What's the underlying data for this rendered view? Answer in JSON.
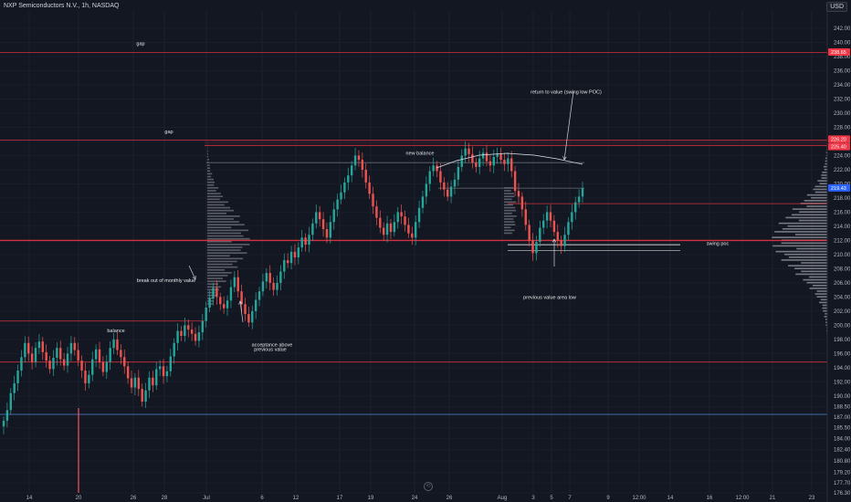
{
  "header": {
    "title": "NXP Semiconductors N.V., 1h, NASDAQ",
    "currency": "USD"
  },
  "colors": {
    "background": "#131722",
    "up": "#26a69a",
    "down": "#ef5350",
    "red_line": "#f23645",
    "blue_line": "#5b9cf6",
    "profile": "#b2b5be",
    "poc": "#ffffff"
  },
  "chart_data": {
    "type": "candlestick",
    "symbol": "NXPI",
    "interval": "1h",
    "y_axis": {
      "ticks": [
        "242.00",
        "240.00",
        "238.00",
        "236.00",
        "234.00",
        "232.00",
        "230.00",
        "228.00",
        "226.00",
        "224.00",
        "222.00",
        "220.00",
        "218.00",
        "216.00",
        "214.00",
        "212.00",
        "210.00",
        "208.00",
        "206.00",
        "204.00",
        "202.00",
        "200.00",
        "198.00",
        "196.00",
        "194.00",
        "192.00",
        "190.00",
        "188.50",
        "187.00",
        "185.50",
        "184.00",
        "182.40",
        "180.80",
        "179.20",
        "177.70",
        "176.30"
      ]
    },
    "x_axis": {
      "ticks": [
        "14",
        "20",
        "26",
        "28",
        "Jul",
        "6",
        "12",
        "17",
        "19",
        "24",
        "26",
        "Aug",
        "3",
        "5",
        "7",
        "9",
        "12:00",
        "14",
        "16",
        "12:00",
        "21",
        "23"
      ]
    },
    "price_tags": [
      {
        "label": "238.65",
        "color": "#f23645"
      },
      {
        "label": "226.20",
        "color": "#f23645"
      },
      {
        "label": "225.40",
        "color": "#f23645"
      },
      {
        "label": "219.43",
        "color": "#2962ff"
      }
    ],
    "levels": [
      {
        "price": 238.6,
        "color": "#f23645"
      },
      {
        "price": 226.2,
        "color": "#f23645"
      },
      {
        "price": 225.4,
        "color": "#f23645"
      },
      {
        "price": 212.0,
        "color": "#f23645"
      },
      {
        "price": 194.8,
        "color": "#f23645"
      },
      {
        "price": 200.6,
        "color": "#f23645"
      },
      {
        "price": 187.4,
        "color": "#5b9cf6"
      },
      {
        "price": 217.2,
        "color": "#f23645"
      },
      {
        "price": 223.0,
        "color": "#787b86"
      },
      {
        "price": 219.4,
        "color": "#787b86"
      }
    ],
    "annotations": [
      {
        "text": "gap",
        "price": 239.9
      },
      {
        "text": "gap",
        "price": 227.4
      },
      {
        "text": "new balance",
        "price": 224.4
      },
      {
        "text": "return to value (swing low POC)",
        "price": 233.0
      },
      {
        "text": "break out of monthly value",
        "price": 206.4
      },
      {
        "text": "balance",
        "price": 199.3
      },
      {
        "text": "acceptance above",
        "price": 197.3
      },
      {
        "text": "previous value",
        "price": 196.6
      },
      {
        "text": "swing poc",
        "price": 211.6
      },
      {
        "text": "previous value area low",
        "price": 204.0
      }
    ],
    "closes": [
      186.5,
      188.0,
      190.4,
      191.8,
      193.6,
      195.5,
      197.5,
      196.0,
      194.8,
      196.8,
      197.7,
      196.2,
      195.0,
      193.8,
      195.4,
      196.8,
      195.2,
      194.3,
      196.0,
      197.5,
      196.5,
      195.0,
      193.6,
      191.8,
      193.0,
      195.2,
      196.6,
      194.8,
      193.4,
      194.8,
      196.8,
      198.0,
      196.5,
      195.5,
      194.2,
      192.5,
      191.2,
      192.6,
      191.0,
      189.2,
      190.8,
      192.6,
      191.5,
      193.8,
      194.2,
      192.8,
      193.5,
      195.6,
      197.5,
      199.2,
      198.5,
      200.0,
      199.4,
      198.8,
      197.8,
      199.0,
      200.6,
      202.5,
      203.8,
      205.3,
      204.0,
      203.0,
      202.4,
      203.5,
      205.4,
      206.8,
      204.8,
      203.0,
      201.6,
      200.4,
      202.0,
      203.6,
      204.8,
      206.2,
      207.4,
      206.0,
      205.0,
      206.0,
      207.6,
      209.2,
      208.8,
      210.4,
      209.6,
      211.0,
      212.4,
      211.4,
      212.8,
      214.4,
      216.0,
      215.0,
      213.6,
      212.4,
      214.6,
      216.4,
      217.8,
      218.8,
      220.2,
      221.2,
      222.6,
      224.0,
      223.4,
      222.0,
      220.2,
      218.6,
      216.8,
      215.2,
      213.8,
      212.8,
      214.4,
      213.2,
      214.6,
      216.0,
      215.4,
      214.2,
      213.0,
      212.4,
      214.6,
      216.6,
      218.2,
      220.0,
      221.8,
      222.6,
      221.8,
      220.2,
      219.2,
      218.2,
      219.6,
      220.6,
      222.4,
      224.0,
      225.0,
      224.2,
      223.0,
      222.4,
      223.6,
      224.4,
      223.2,
      222.6,
      223.8,
      224.2,
      223.4,
      222.8,
      223.6,
      221.8,
      219.0,
      218.2,
      216.4,
      214.2,
      212.0,
      210.2,
      211.8,
      213.8,
      214.8,
      216.0,
      214.8,
      213.2,
      212.0,
      211.2,
      212.8,
      214.6,
      216.0,
      217.4,
      218.2,
      219.4
    ]
  }
}
